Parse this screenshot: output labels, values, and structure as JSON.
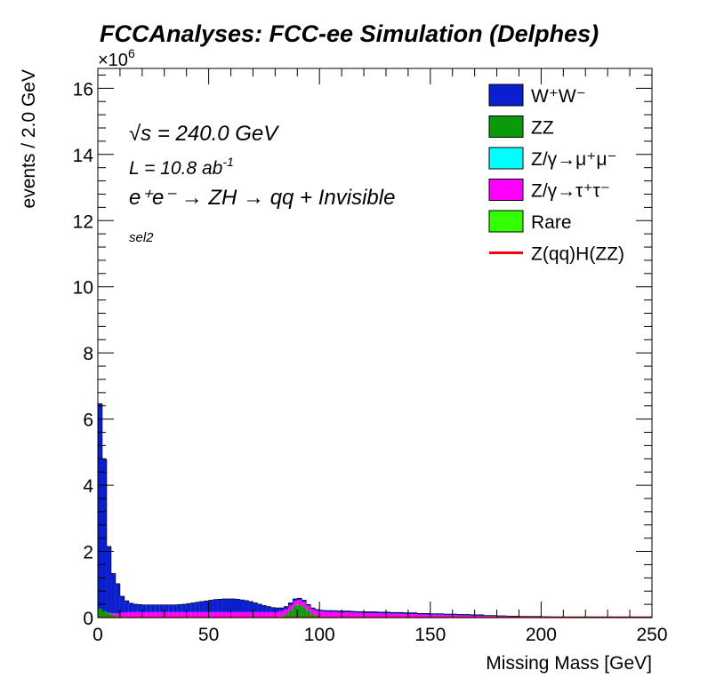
{
  "chart_data": {
    "type": "bar",
    "title": "FCCAnalyses: FCC-ee Simulation (Delphes)",
    "xlabel": "Missing Mass [GeV]",
    "ylabel": "events / 2.0 GeV",
    "y_multiplier": "×10",
    "y_multiplier_exp": "6",
    "xlim": [
      0,
      250
    ],
    "ylim": [
      0,
      16.6
    ],
    "x_ticks": [
      "0",
      "50",
      "100",
      "150",
      "200",
      "250"
    ],
    "y_ticks": [
      "0",
      "2",
      "4",
      "6",
      "8",
      "10",
      "12",
      "14",
      "16"
    ],
    "bin_width": 2.0,
    "stacked": true,
    "annotations": {
      "sqrt_s": "√s = 240.0 GeV",
      "lumi": "L = 10.8 ab",
      "lumi_exp": "-1",
      "process": "e⁺e⁻ → ZH → qq + Invisible",
      "selection": "sel2"
    },
    "legend": [
      {
        "label": "W⁺W⁻",
        "color": "#0b1fd0",
        "kind": "fill"
      },
      {
        "label": "ZZ",
        "color": "#0a9a0a",
        "kind": "fill"
      },
      {
        "label": "Z/γ→μ⁺μ⁻",
        "color": "#00ffff",
        "kind": "fill"
      },
      {
        "label": "Z/γ→τ⁺τ⁻",
        "color": "#ff00ff",
        "kind": "fill"
      },
      {
        "label": "Rare",
        "color": "#33ff00",
        "kind": "fill"
      },
      {
        "label": "Z(qq)H(ZZ)",
        "color": "#ff0000",
        "kind": "line"
      }
    ],
    "legend_position": "top-right",
    "series": [
      {
        "name": "Rare",
        "color": "#33ff00",
        "values": [
          0.02,
          0.01,
          0.01,
          0.005,
          0.005,
          0.005,
          0.005,
          0.005,
          0.005,
          0.005,
          0.005,
          0.005,
          0.005,
          0.005,
          0.005,
          0.005,
          0.005,
          0.005,
          0.005,
          0.005,
          0.005,
          0.005,
          0.005,
          0.005,
          0.005,
          0.005,
          0.005,
          0.005,
          0.005,
          0.005,
          0.005,
          0.005,
          0.005,
          0.005,
          0.005,
          0.005,
          0.005,
          0.005,
          0.005,
          0.005,
          0.005,
          0.005,
          0.005,
          0.005,
          0.005,
          0.005,
          0.005,
          0.005,
          0.005,
          0.005,
          0.005,
          0.005,
          0.005,
          0.005,
          0.005,
          0.005,
          0.005,
          0.005,
          0.005,
          0.005,
          0.005,
          0.005,
          0.005,
          0.005,
          0.005,
          0.005,
          0.005,
          0.005,
          0.005,
          0.005,
          0.005,
          0.005,
          0.005,
          0.005,
          0.005,
          0.005,
          0.005,
          0.005,
          0.005,
          0.005,
          0.005,
          0.005,
          0.005,
          0.005,
          0.005,
          0.005,
          0.005,
          0.005,
          0.005,
          0.005,
          0.005,
          0.005,
          0.005,
          0.005,
          0.005,
          0.005,
          0.005,
          0.005,
          0.005,
          0.005,
          0.005,
          0.005,
          0.005,
          0.005,
          0.005,
          0.005,
          0.005,
          0.005,
          0.005,
          0.005,
          0.005,
          0.005,
          0.005,
          0.005,
          0.005,
          0.005,
          0.005,
          0.005,
          0.005,
          0.005,
          0.005,
          0.005,
          0.005,
          0.005,
          0.005
        ]
      },
      {
        "name": "ZZ",
        "color": "#0a9a0a",
        "values": [
          0.25,
          0.18,
          0.12,
          0.08,
          0.04,
          0.02,
          0.015,
          0.01,
          0.01,
          0.01,
          0.01,
          0.01,
          0.01,
          0.01,
          0.01,
          0.01,
          0.01,
          0.01,
          0.01,
          0.01,
          0.01,
          0.01,
          0.01,
          0.01,
          0.01,
          0.01,
          0.01,
          0.01,
          0.01,
          0.01,
          0.01,
          0.01,
          0.01,
          0.01,
          0.01,
          0.01,
          0.01,
          0.01,
          0.01,
          0.01,
          0.02,
          0.04,
          0.1,
          0.22,
          0.35,
          0.38,
          0.32,
          0.2,
          0.1,
          0.05,
          0.03,
          0.02,
          0.02,
          0.015,
          0.015,
          0.015,
          0.015,
          0.015,
          0.01,
          0.01,
          0.01,
          0.01,
          0.01,
          0.01,
          0.01,
          0.01,
          0.01,
          0.01,
          0.01,
          0.01,
          0.01,
          0.01,
          0.01,
          0.01,
          0.01,
          0.01,
          0.01,
          0.01,
          0.01,
          0.01,
          0.01,
          0.01,
          0.01,
          0.01,
          0.01,
          0.01,
          0.01,
          0.01,
          0.01,
          0.01,
          0.01,
          0.01,
          0.01,
          0.01,
          0.01,
          0.01,
          0.01,
          0.01,
          0.01,
          0.01,
          0.01,
          0.01,
          0.01,
          0.01,
          0.01,
          0.01,
          0.01,
          0.01,
          0.01,
          0.01,
          0.01,
          0.01,
          0.01,
          0.01,
          0.01,
          0.01,
          0.01,
          0.01,
          0.01,
          0.01,
          0.01,
          0.01,
          0.01,
          0.01,
          0.01
        ]
      },
      {
        "name": "Z/γ→μ⁺μ⁻",
        "color": "#00ffff",
        "values": [
          0,
          0,
          0,
          0,
          0,
          0,
          0,
          0,
          0,
          0,
          0,
          0,
          0,
          0,
          0,
          0,
          0,
          0,
          0,
          0,
          0,
          0,
          0,
          0,
          0,
          0,
          0,
          0,
          0,
          0,
          0,
          0,
          0,
          0,
          0,
          0,
          0,
          0,
          0,
          0,
          0,
          0,
          0,
          0,
          0,
          0,
          0,
          0,
          0,
          0,
          0,
          0,
          0,
          0,
          0,
          0,
          0,
          0,
          0,
          0,
          0,
          0,
          0,
          0,
          0,
          0,
          0,
          0,
          0,
          0,
          0,
          0,
          0,
          0,
          0,
          0,
          0,
          0,
          0,
          0,
          0,
          0,
          0,
          0,
          0,
          0,
          0,
          0,
          0,
          0,
          0,
          0,
          0,
          0,
          0,
          0,
          0,
          0,
          0,
          0,
          0,
          0,
          0,
          0,
          0,
          0,
          0,
          0,
          0,
          0,
          0,
          0,
          0,
          0,
          0,
          0,
          0,
          0,
          0,
          0,
          0,
          0,
          0,
          0,
          0
        ]
      },
      {
        "name": "Z/γ→τ⁺τ⁻",
        "color": "#ff00ff",
        "values": [
          0,
          0,
          0.02,
          0.05,
          0.08,
          0.12,
          0.14,
          0.15,
          0.15,
          0.15,
          0.15,
          0.15,
          0.15,
          0.15,
          0.15,
          0.15,
          0.15,
          0.15,
          0.15,
          0.15,
          0.15,
          0.15,
          0.15,
          0.15,
          0.15,
          0.15,
          0.15,
          0.15,
          0.15,
          0.15,
          0.15,
          0.15,
          0.15,
          0.15,
          0.15,
          0.15,
          0.15,
          0.15,
          0.15,
          0.15,
          0.15,
          0.15,
          0.15,
          0.15,
          0.15,
          0.15,
          0.15,
          0.15,
          0.15,
          0.15,
          0.15,
          0.15,
          0.15,
          0.15,
          0.14,
          0.14,
          0.14,
          0.13,
          0.13,
          0.13,
          0.12,
          0.12,
          0.12,
          0.11,
          0.11,
          0.11,
          0.1,
          0.1,
          0.1,
          0.09,
          0.09,
          0.09,
          0.08,
          0.08,
          0.08,
          0.07,
          0.07,
          0.07,
          0.06,
          0.06,
          0.06,
          0.05,
          0.05,
          0.05,
          0.04,
          0.04,
          0.04,
          0.03,
          0.03,
          0.03,
          0.02,
          0.02,
          0.02,
          0.015,
          0.015,
          0.015,
          0.01,
          0.01,
          0.01,
          0.01,
          0.005,
          0.005,
          0.005,
          0.005,
          0.005,
          0.005,
          0.005,
          0.005,
          0.005,
          0.005,
          0.005,
          0.005,
          0.005,
          0.005,
          0.005,
          0.005,
          0.005,
          0.005,
          0.005,
          0.005,
          0.005,
          0.005,
          0.005,
          0.005,
          0.005
        ]
      },
      {
        "name": "W⁺W⁻",
        "color": "#0b1fd0",
        "values": [
          6.2,
          4.6,
          2.0,
          1.2,
          0.9,
          0.5,
          0.35,
          0.27,
          0.24,
          0.23,
          0.22,
          0.22,
          0.22,
          0.22,
          0.22,
          0.22,
          0.22,
          0.22,
          0.23,
          0.24,
          0.26,
          0.28,
          0.3,
          0.32,
          0.34,
          0.36,
          0.38,
          0.39,
          0.4,
          0.4,
          0.4,
          0.39,
          0.37,
          0.35,
          0.32,
          0.28,
          0.24,
          0.2,
          0.17,
          0.14,
          0.12,
          0.1,
          0.08,
          0.07,
          0.06,
          0.05,
          0.05,
          0.04,
          0.04,
          0.04,
          0.04,
          0.04,
          0.04,
          0.04,
          0.04,
          0.04,
          0.04,
          0.04,
          0.04,
          0.04,
          0.04,
          0.04,
          0.04,
          0.04,
          0.04,
          0.04,
          0.04,
          0.04,
          0.04,
          0.04,
          0.04,
          0.04,
          0.03,
          0.03,
          0.03,
          0.03,
          0.03,
          0.03,
          0.03,
          0.03,
          0.03,
          0.03,
          0.03,
          0.03,
          0.03,
          0.03,
          0.03,
          0.02,
          0.02,
          0.02,
          0.02,
          0.02,
          0.015,
          0.015,
          0.015,
          0.01,
          0.01,
          0.01,
          0.01,
          0.01,
          0.01,
          0.01,
          0.005,
          0.005,
          0.005,
          0.005,
          0.005,
          0.005,
          0.005,
          0.005,
          0.005,
          0.005,
          0.005,
          0.005,
          0.005,
          0.005,
          0.005,
          0.005,
          0.005,
          0.005,
          0.005,
          0.005,
          0.005,
          0.005,
          0.005
        ]
      }
    ],
    "signal": {
      "name": "Z(qq)H(ZZ)",
      "color": "#ff0000",
      "values": [
        0.002
      ]
    }
  }
}
